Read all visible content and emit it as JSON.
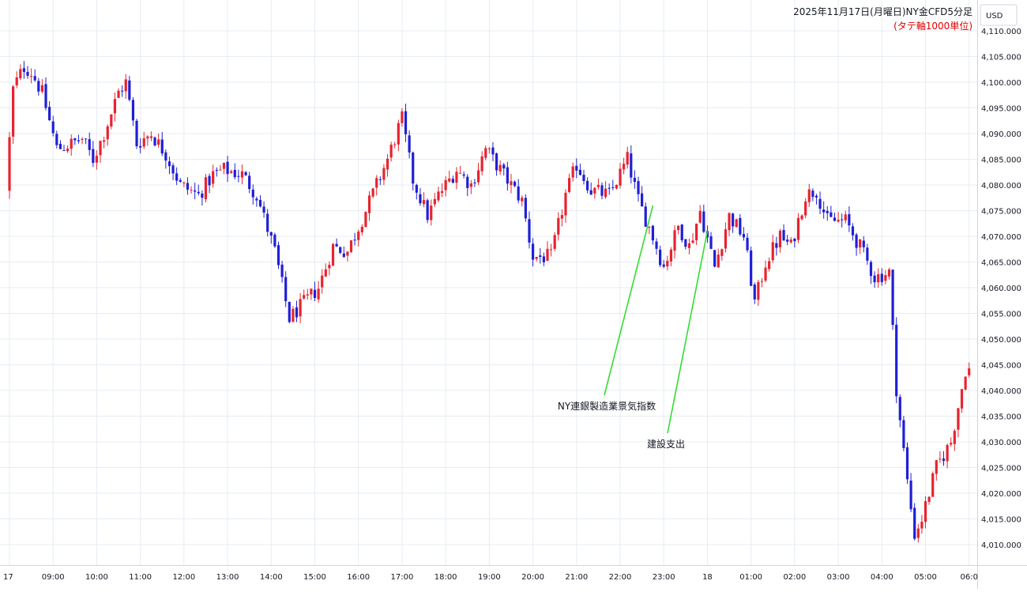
{
  "chart_data": {
    "type": "candlestick",
    "title": "2025年11月17日(月曜日)NY金CFD5分足",
    "subtitle": "(タテ軸1000単位)",
    "currency_label": "USD",
    "ylim": [
      4006,
      4116
    ],
    "y_ticks": [
      "4,010.000",
      "4,015.000",
      "4,020.000",
      "4,025.000",
      "4,030.000",
      "4,035.000",
      "4,040.000",
      "4,045.000",
      "4,050.000",
      "4,055.000",
      "4,060.000",
      "4,065.000",
      "4,070.000",
      "4,075.000",
      "4,080.000",
      "4,085.000",
      "4,090.000",
      "4,095.000",
      "4,100.000",
      "4,105.000",
      "4,110.000"
    ],
    "y_tick_values": [
      4010,
      4015,
      4020,
      4025,
      4030,
      4035,
      4040,
      4045,
      4050,
      4055,
      4060,
      4065,
      4070,
      4075,
      4080,
      4085,
      4090,
      4095,
      4100,
      4105,
      4110
    ],
    "x_ticks": [
      "17",
      "09:00",
      "10:00",
      "11:00",
      "12:00",
      "13:00",
      "14:00",
      "15:00",
      "16:00",
      "17:00",
      "18:00",
      "19:00",
      "20:00",
      "21:00",
      "22:00",
      "23:00",
      "18",
      "01:00",
      "02:00",
      "03:00",
      "04:00",
      "05:00",
      "06:0"
    ],
    "x_tick_hours": [
      8,
      9,
      10,
      11,
      12,
      13,
      14,
      15,
      16,
      17,
      18,
      19,
      20,
      21,
      22,
      23,
      24,
      25,
      26,
      27,
      28,
      29,
      30
    ],
    "grid": true,
    "up_color": "#e8232f",
    "down_color": "#1f1fd6",
    "annotation_color": "#33dd33",
    "annotations": [
      {
        "label": "NY連銀製造業景気指数",
        "time_hour": 22.75,
        "price": 4076
      },
      {
        "label": "建設支出",
        "time_hour": 24.0,
        "price": 4071
      }
    ],
    "path_anchors": [
      {
        "t": 8.0,
        "p": 4079
      },
      {
        "t": 8.17,
        "p": 4099
      },
      {
        "t": 8.42,
        "p": 4103
      },
      {
        "t": 8.58,
        "p": 4102
      },
      {
        "t": 8.83,
        "p": 4098
      },
      {
        "t": 9.17,
        "p": 4087
      },
      {
        "t": 9.5,
        "p": 4088
      },
      {
        "t": 9.75,
        "p": 4089
      },
      {
        "t": 10.0,
        "p": 4085
      },
      {
        "t": 10.25,
        "p": 4090
      },
      {
        "t": 10.58,
        "p": 4098
      },
      {
        "t": 10.75,
        "p": 4100
      },
      {
        "t": 11.0,
        "p": 4088
      },
      {
        "t": 11.33,
        "p": 4090
      },
      {
        "t": 11.67,
        "p": 4086
      },
      {
        "t": 12.0,
        "p": 4080
      },
      {
        "t": 12.42,
        "p": 4078
      },
      {
        "t": 12.75,
        "p": 4082
      },
      {
        "t": 13.0,
        "p": 4083
      },
      {
        "t": 13.42,
        "p": 4082
      },
      {
        "t": 13.75,
        "p": 4078
      },
      {
        "t": 14.17,
        "p": 4067
      },
      {
        "t": 14.5,
        "p": 4054
      },
      {
        "t": 14.83,
        "p": 4057
      },
      {
        "t": 15.17,
        "p": 4060
      },
      {
        "t": 15.5,
        "p": 4068
      },
      {
        "t": 15.83,
        "p": 4067
      },
      {
        "t": 16.25,
        "p": 4075
      },
      {
        "t": 16.75,
        "p": 4085
      },
      {
        "t": 17.08,
        "p": 4093
      },
      {
        "t": 17.33,
        "p": 4081
      },
      {
        "t": 17.67,
        "p": 4074
      },
      {
        "t": 17.92,
        "p": 4078
      },
      {
        "t": 18.33,
        "p": 4083
      },
      {
        "t": 18.67,
        "p": 4080
      },
      {
        "t": 19.0,
        "p": 4087
      },
      {
        "t": 19.33,
        "p": 4083
      },
      {
        "t": 19.83,
        "p": 4077
      },
      {
        "t": 20.08,
        "p": 4066
      },
      {
        "t": 20.5,
        "p": 4066
      },
      {
        "t": 20.83,
        "p": 4078
      },
      {
        "t": 21.08,
        "p": 4084
      },
      {
        "t": 21.42,
        "p": 4079
      },
      {
        "t": 21.83,
        "p": 4078
      },
      {
        "t": 22.25,
        "p": 4085
      },
      {
        "t": 22.5,
        "p": 4077
      },
      {
        "t": 22.83,
        "p": 4070
      },
      {
        "t": 23.08,
        "p": 4064
      },
      {
        "t": 23.42,
        "p": 4072
      },
      {
        "t": 23.67,
        "p": 4068
      },
      {
        "t": 23.92,
        "p": 4075
      },
      {
        "t": 24.25,
        "p": 4064
      },
      {
        "t": 24.58,
        "p": 4074
      },
      {
        "t": 24.92,
        "p": 4070
      },
      {
        "t": 25.17,
        "p": 4057
      },
      {
        "t": 25.42,
        "p": 4065
      },
      {
        "t": 25.75,
        "p": 4070
      },
      {
        "t": 26.0,
        "p": 4068
      },
      {
        "t": 26.33,
        "p": 4078
      },
      {
        "t": 26.58,
        "p": 4079
      },
      {
        "t": 26.83,
        "p": 4073
      },
      {
        "t": 27.25,
        "p": 4073
      },
      {
        "t": 27.58,
        "p": 4068
      },
      {
        "t": 27.92,
        "p": 4062
      },
      {
        "t": 28.25,
        "p": 4063
      },
      {
        "t": 28.42,
        "p": 4040
      },
      {
        "t": 28.67,
        "p": 4022
      },
      {
        "t": 28.83,
        "p": 4012
      },
      {
        "t": 29.0,
        "p": 4015
      },
      {
        "t": 29.33,
        "p": 4025
      },
      {
        "t": 29.67,
        "p": 4030
      },
      {
        "t": 30.0,
        "p": 4044
      }
    ]
  }
}
